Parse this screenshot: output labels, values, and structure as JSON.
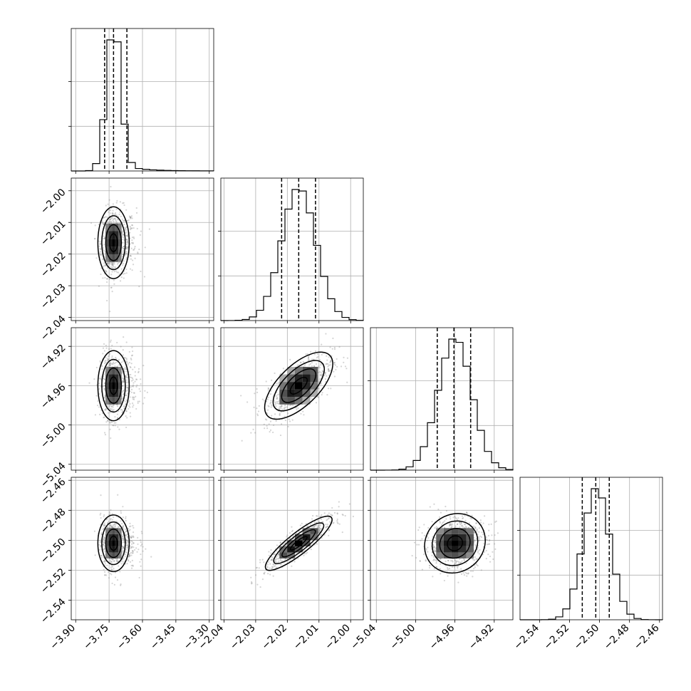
{
  "chart_data": {
    "type": "corner",
    "params": [
      {
        "range": [
          -3.92,
          -3.28
        ],
        "ticks": [
          -3.9,
          -3.75,
          -3.6,
          -3.45,
          -3.3
        ],
        "tick_labels": [
          "−3.90",
          "−3.75",
          "−3.60",
          "−3.45",
          "−3.30"
        ],
        "quantiles": [
          -3.77,
          -3.73,
          -3.67
        ],
        "mean": -3.73,
        "sd": 0.032
      },
      {
        "range": [
          -2.041,
          -1.996
        ],
        "ticks": [
          -2.04,
          -2.03,
          -2.02,
          -2.01,
          -2.0
        ],
        "tick_labels": [
          "−2.04",
          "−2.03",
          "−2.02",
          "−2.01",
          "−2.00"
        ],
        "quantiles": [
          -2.0218,
          -2.0164,
          -2.0111
        ],
        "mean": -2.0164,
        "sd": 0.0054
      },
      {
        "range": [
          -5.046,
          -4.901
        ],
        "ticks": [
          -5.04,
          -5.0,
          -4.96,
          -4.92
        ],
        "tick_labels": [
          "−5.04",
          "−5.00",
          "−4.96",
          "−4.92"
        ],
        "quantiles": [
          -4.978,
          -4.961,
          -4.944
        ],
        "mean": -4.96,
        "sd": 0.017
      },
      {
        "range": [
          -2.553,
          -2.458
        ],
        "ticks": [
          -2.54,
          -2.52,
          -2.5,
          -2.48,
          -2.46
        ],
        "tick_labels": [
          "−2.54",
          "−2.52",
          "−2.50",
          "−2.48",
          "−2.46"
        ],
        "quantiles": [
          -2.5115,
          -2.5025,
          -2.4935
        ],
        "mean": -2.502,
        "sd": 0.009
      }
    ],
    "correlations": [
      {
        "i": 1,
        "j": 0,
        "rho": 0.0
      },
      {
        "i": 2,
        "j": 0,
        "rho": 0.0
      },
      {
        "i": 2,
        "j": 1,
        "rho": 0.65
      },
      {
        "i": 3,
        "j": 0,
        "rho": 0.0
      },
      {
        "i": 3,
        "j": 1,
        "rho": 0.88
      },
      {
        "i": 3,
        "j": 2,
        "rho": 0.1
      }
    ],
    "grid": true
  }
}
